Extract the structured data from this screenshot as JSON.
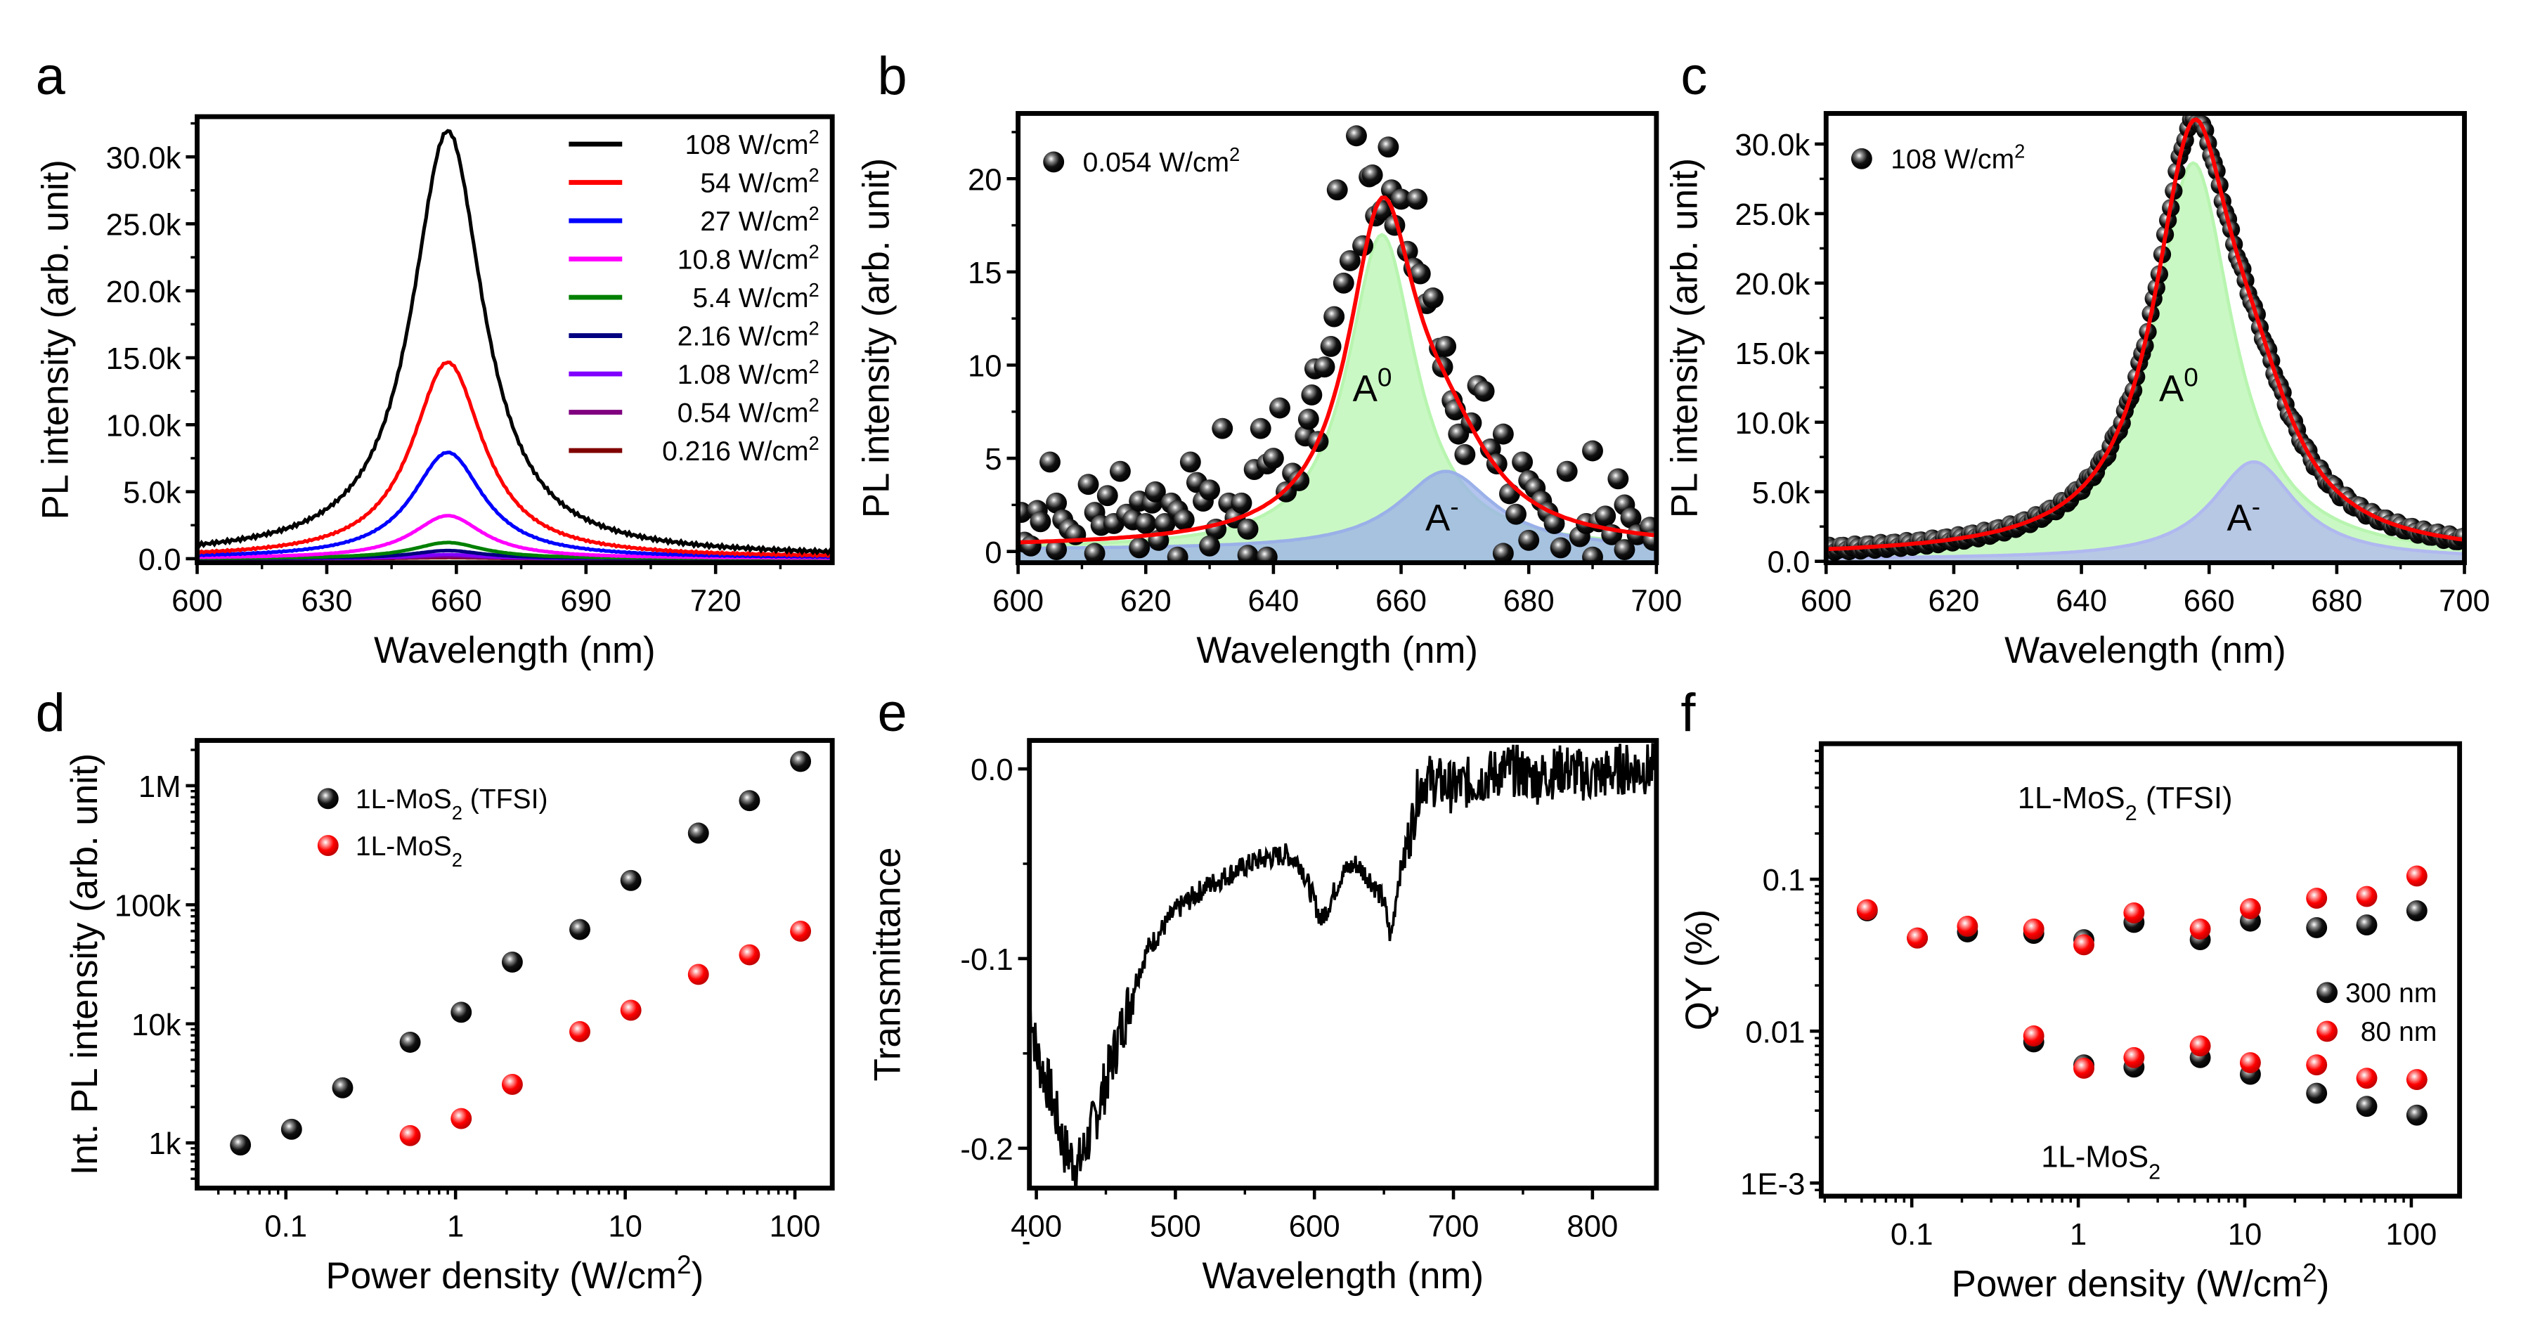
{
  "panel_labels": [
    "a",
    "b",
    "c",
    "d",
    "e",
    "f"
  ],
  "chart_data": [
    {
      "panel": "a",
      "type": "line",
      "xlabel": "Wavelength (nm)",
      "ylabel": "PL intensity (arb. unit)",
      "xlim": [
        600,
        747
      ],
      "ylim": [
        -0.3,
        33
      ],
      "xticks": [
        600,
        630,
        660,
        690,
        720
      ],
      "xtick_labels": [
        "600",
        "630",
        "660",
        "690",
        "720"
      ],
      "yticks": [
        0,
        5,
        10,
        15,
        20,
        25,
        30
      ],
      "ytick_labels": [
        "0.0",
        "5.0k",
        "10.0k",
        "15.0k",
        "20.0k",
        "25.0k",
        "30.0k"
      ],
      "y_unit": "k",
      "legend_position": "top-right",
      "series": [
        {
          "name": "108 W/cm",
          "sup": "2",
          "color": "#000000",
          "peak_nm": 658,
          "peak": 31.8,
          "fwhm_nm": 20
        },
        {
          "name": "54 W/cm",
          "sup": "2",
          "color": "#ff0000",
          "peak_nm": 658,
          "peak": 14.6,
          "fwhm_nm": 20
        },
        {
          "name": "27 W/cm",
          "sup": "2",
          "color": "#0000ff",
          "peak_nm": 658,
          "peak": 7.9,
          "fwhm_nm": 20
        },
        {
          "name": "10.8 W/cm",
          "sup": "2",
          "color": "#ff00ff",
          "peak_nm": 658,
          "peak": 3.2,
          "fwhm_nm": 20
        },
        {
          "name": "5.4 W/cm",
          "sup": "2",
          "color": "#008000",
          "peak_nm": 658,
          "peak": 1.2,
          "fwhm_nm": 20
        },
        {
          "name": "2.16 W/cm",
          "sup": "2",
          "color": "#000080",
          "peak_nm": 658,
          "peak": 0.6,
          "fwhm_nm": 20
        },
        {
          "name": "1.08 W/cm",
          "sup": "2",
          "color": "#8000ff",
          "peak_nm": 658,
          "peak": 0.3,
          "fwhm_nm": 20
        },
        {
          "name": "0.54 W/cm",
          "sup": "2",
          "color": "#800080",
          "peak_nm": 658,
          "peak": 0.15,
          "fwhm_nm": 20
        },
        {
          "name": "0.216 W/cm",
          "sup": "2",
          "color": "#800000",
          "peak_nm": 658,
          "peak": 0.08,
          "fwhm_nm": 20
        }
      ]
    },
    {
      "panel": "b",
      "type": "scatter",
      "xlabel": "Wavelength (nm)",
      "ylabel": "PL intensity (arb. unit)",
      "xlim": [
        600,
        700
      ],
      "ylim": [
        -0.6,
        23.5
      ],
      "xticks": [
        600,
        620,
        640,
        660,
        680,
        700
      ],
      "xtick_labels": [
        "600",
        "620",
        "640",
        "660",
        "680",
        "700"
      ],
      "yticks": [
        0,
        5,
        10,
        15,
        20
      ],
      "ytick_labels": [
        "0",
        "5",
        "10",
        "15",
        "20"
      ],
      "legend": {
        "text": "0.054 W/cm",
        "sup": "2"
      },
      "fit_color": "#ff0000",
      "components": [
        {
          "label": "A",
          "sup": "0",
          "center_nm": 657,
          "peak": 16.9,
          "fwhm_nm": 13,
          "fill": "#b8f5b0",
          "label_color": "#1aa050"
        },
        {
          "label": "A",
          "sup": "-",
          "center_nm": 667,
          "peak": 4.2,
          "fwhm_nm": 18,
          "fill": "#9ab0e8",
          "label_color": "#0000ff"
        }
      ],
      "baseline": 0.2,
      "points": [
        [
          600.5,
          2.1
        ],
        [
          601,
          0.5
        ],
        [
          602,
          0.3
        ],
        [
          603,
          2.2
        ],
        [
          603.5,
          1.6
        ],
        [
          605,
          4.8
        ],
        [
          606,
          2.6
        ],
        [
          607,
          1.7
        ],
        [
          608,
          1.2
        ],
        [
          609,
          0.9
        ],
        [
          611,
          3.6
        ],
        [
          612,
          2.1
        ],
        [
          613,
          1.4
        ],
        [
          614,
          3.0
        ],
        [
          615,
          1.5
        ],
        [
          616,
          4.3
        ],
        [
          617,
          2.0
        ],
        [
          618,
          1.7
        ],
        [
          619,
          2.7
        ],
        [
          620,
          1.5
        ],
        [
          621,
          2.6
        ],
        [
          621.5,
          3.2
        ],
        [
          622,
          0.6
        ],
        [
          623,
          1.5
        ],
        [
          624,
          2.6
        ],
        [
          625,
          2.2
        ],
        [
          626,
          1.7
        ],
        [
          627,
          4.8
        ],
        [
          628,
          3.7
        ],
        [
          629,
          2.7
        ],
        [
          630,
          3.3
        ],
        [
          631,
          1.2
        ],
        [
          632,
          6.6
        ],
        [
          633,
          2.6
        ],
        [
          634,
          1.8
        ],
        [
          635,
          2.6
        ],
        [
          636,
          1.2
        ],
        [
          637,
          4.4
        ],
        [
          638,
          6.6
        ],
        [
          639,
          4.7
        ],
        [
          640,
          5.0
        ],
        [
          641,
          7.7
        ],
        [
          642,
          3.2
        ],
        [
          643,
          4.2
        ],
        [
          644,
          3.8
        ],
        [
          645,
          6.2
        ],
        [
          645.5,
          7.1
        ],
        [
          646,
          8.4
        ],
        [
          646.5,
          9.8
        ],
        [
          647,
          5.9
        ],
        [
          648,
          9.9
        ],
        [
          649,
          11.0
        ],
        [
          649.5,
          12.6
        ],
        [
          650,
          19.4
        ],
        [
          651,
          14.4
        ],
        [
          652,
          15.6
        ],
        [
          653,
          22.3
        ],
        [
          654,
          16.4
        ],
        [
          655,
          20.1
        ],
        [
          655.5,
          20.2
        ],
        [
          656,
          18.0
        ],
        [
          657,
          18.3
        ],
        [
          658,
          21.7
        ],
        [
          658.5,
          19.4
        ],
        [
          659,
          17.5
        ],
        [
          660,
          18.9
        ],
        [
          661,
          16.1
        ],
        [
          662,
          15.2
        ],
        [
          662.5,
          18.9
        ],
        [
          663,
          14.9
        ],
        [
          664,
          13.3
        ],
        [
          665,
          13.6
        ],
        [
          666,
          10.9
        ],
        [
          666.5,
          9.9
        ],
        [
          667,
          11.0
        ],
        [
          668,
          8.1
        ],
        [
          668.5,
          7.6
        ],
        [
          669,
          6.3
        ],
        [
          670,
          5.2
        ],
        [
          671,
          6.9
        ],
        [
          672,
          8.9
        ],
        [
          673,
          8.6
        ],
        [
          674,
          5.5
        ],
        [
          675,
          4.7
        ],
        [
          676,
          6.3
        ],
        [
          677,
          3.1
        ],
        [
          678,
          2.0
        ],
        [
          679,
          4.8
        ],
        [
          680,
          3.8
        ],
        [
          681,
          3.4
        ],
        [
          682,
          2.7
        ],
        [
          683,
          2.1
        ],
        [
          684,
          1.5
        ],
        [
          686,
          4.3
        ],
        [
          688,
          0.8
        ],
        [
          689,
          1.5
        ],
        [
          690,
          5.4
        ],
        [
          691,
          1.6
        ],
        [
          692,
          1.9
        ],
        [
          693,
          0.9
        ],
        [
          694,
          3.9
        ],
        [
          695,
          2.5
        ],
        [
          696,
          1.8
        ],
        [
          697,
          0.9
        ],
        [
          699,
          1.3
        ],
        [
          699.5,
          0.6
        ],
        [
          606,
          0.1
        ],
        [
          612,
          -0.1
        ],
        [
          619,
          0.2
        ],
        [
          625,
          -0.3
        ],
        [
          630,
          0.3
        ],
        [
          636,
          -0.2
        ],
        [
          639,
          -0.3
        ],
        [
          676,
          -0.1
        ],
        [
          680,
          0.6
        ],
        [
          685,
          0.2
        ],
        [
          690,
          -0.3
        ],
        [
          695,
          0.1
        ]
      ]
    },
    {
      "panel": "c",
      "type": "scatter",
      "xlabel": "Wavelength (nm)",
      "ylabel": "PL intensity (arb. unit)",
      "xlim": [
        600,
        700
      ],
      "ylim": [
        -0.1,
        32.2
      ],
      "xticks": [
        600,
        620,
        640,
        660,
        680,
        700
      ],
      "xtick_labels": [
        "600",
        "620",
        "640",
        "660",
        "680",
        "700"
      ],
      "yticks": [
        0,
        5,
        10,
        15,
        20,
        25,
        30
      ],
      "ytick_labels": [
        "0.0",
        "5.0k",
        "10.0k",
        "15.0k",
        "20.0k",
        "25.0k",
        "30.0k"
      ],
      "y_unit": "k",
      "legend": {
        "text": "108 W/cm",
        "sup": "2"
      },
      "fit_color": "#ff0000",
      "components": [
        {
          "label": "A",
          "sup": "0",
          "center_nm": 657.5,
          "peak": 28.5,
          "fwhm_nm": 15,
          "fill": "#b8f5b0",
          "label_color": "#1aa050"
        },
        {
          "label": "A",
          "sup": "-",
          "center_nm": 667,
          "peak": 7.0,
          "fwhm_nm": 16,
          "fill": "#b0b8f0",
          "label_color": "#0000ff"
        }
      ],
      "baseline": 0.3,
      "points_note_hidden": true
    },
    {
      "panel": "d",
      "type": "scatter",
      "xlabel": "Power density (W/cm",
      "xlabel_sup": "2",
      "xlabel_after": ")",
      "ylabel": "Int. PL intensity (arb. unit)",
      "xscale": "log",
      "yscale": "log",
      "xlim": [
        0.03,
        166
      ],
      "ylim": [
        417,
        2400000
      ],
      "xticks": [
        0.1,
        1,
        10,
        100
      ],
      "xtick_labels": [
        "0.1",
        "1",
        "10",
        "100"
      ],
      "yticks": [
        1000,
        10000,
        100000,
        1000000
      ],
      "ytick_labels": [
        "1k",
        "10k",
        "100k",
        "1M"
      ],
      "legend_position": "top-left",
      "series": [
        {
          "name": "1L-MoS",
          "sub": "2",
          "after": " (TFSI)",
          "color": "black",
          "x": [
            0.054,
            0.108,
            0.216,
            0.54,
            1.08,
            2.16,
            5.4,
            10.8,
            27,
            54,
            108
          ],
          "y": [
            960,
            1300,
            2900,
            7000,
            12500,
            33000,
            62000,
            160000,
            400000,
            750000,
            1600000
          ]
        },
        {
          "name": "1L-MoS",
          "sub": "2",
          "after": "",
          "color": "red",
          "x": [
            0.54,
            1.08,
            2.16,
            5.4,
            10.8,
            27,
            54,
            108
          ],
          "y": [
            1150,
            1600,
            3100,
            8600,
            13000,
            26000,
            38000,
            60000
          ]
        }
      ]
    },
    {
      "panel": "e",
      "type": "line",
      "xlabel": "Wavelength (nm)",
      "ylabel": "Transmittance",
      "xlim": [
        395,
        846
      ],
      "ylim": [
        -0.221,
        0.015
      ],
      "xticks": [
        400,
        500,
        600,
        700,
        800
      ],
      "xtick_labels": [
        "400",
        "500",
        "600",
        "700",
        "800"
      ],
      "yticks": [
        0,
        -0.1,
        -0.2
      ],
      "ytick_labels": [
        "0.0",
        "-0.1",
        "-0.2"
      ],
      "x": [
        395,
        400,
        410,
        420,
        430,
        440,
        450,
        460,
        470,
        480,
        490,
        500,
        520,
        540,
        560,
        580,
        590,
        600,
        605,
        610,
        620,
        630,
        640,
        650,
        655,
        660,
        665,
        670,
        675,
        680,
        700,
        720,
        740,
        760,
        780,
        800,
        820,
        846
      ],
      "y": [
        -0.12,
        -0.15,
        -0.17,
        -0.2,
        -0.21,
        -0.19,
        -0.165,
        -0.14,
        -0.115,
        -0.095,
        -0.085,
        -0.075,
        -0.063,
        -0.055,
        -0.048,
        -0.045,
        -0.05,
        -0.07,
        -0.08,
        -0.072,
        -0.055,
        -0.05,
        -0.058,
        -0.07,
        -0.09,
        -0.06,
        -0.045,
        -0.03,
        -0.01,
        -0.005,
        -0.01,
        -0.005,
        0,
        -0.005,
        0,
        -0.005,
        0,
        0
      ]
    },
    {
      "panel": "f",
      "type": "scatter",
      "xlabel": "Power density (W/cm",
      "xlabel_sup": "2",
      "xlabel_after": ")",
      "ylabel": "QY (%)",
      "xscale": "log",
      "yscale": "log",
      "xlim": [
        0.0286,
        195
      ],
      "ylim": [
        0.00082,
        0.78
      ],
      "xticks": [
        0.1,
        1,
        10,
        100
      ],
      "xtick_labels": [
        "0.1",
        "1",
        "10",
        "100"
      ],
      "yticks": [
        0.001,
        0.01,
        0.1
      ],
      "ytick_labels": [
        "1E-3",
        "0.01",
        "0.1"
      ],
      "annotations": [
        {
          "text": "1L-MoS",
          "sub": "2",
          "after": " (TFSI)"
        },
        {
          "text": "1L-MoS",
          "sub": "2",
          "after": ""
        }
      ],
      "legend_position": "right",
      "series": [
        {
          "name": "300 nm",
          "color": "black",
          "x": [
            0.054,
            0.108,
            0.216,
            0.54,
            1.08,
            2.16,
            5.4,
            10.8,
            27,
            54,
            108,
            0.54,
            1.08,
            2.16,
            5.4,
            10.8,
            27,
            54,
            108
          ],
          "y": [
            0.062,
            0.041,
            0.045,
            0.044,
            0.04,
            0.052,
            0.04,
            0.053,
            0.048,
            0.05,
            0.062,
            0.0085,
            0.006,
            0.0058,
            0.0067,
            0.0052,
            0.0039,
            0.0032,
            0.0028
          ]
        },
        {
          "name": "80 nm",
          "color": "red",
          "x": [
            0.054,
            0.108,
            0.216,
            0.54,
            1.08,
            2.16,
            5.4,
            10.8,
            27,
            54,
            108,
            0.54,
            1.08,
            2.16,
            5.4,
            10.8,
            27,
            54,
            108
          ],
          "y": [
            0.063,
            0.041,
            0.049,
            0.047,
            0.037,
            0.06,
            0.047,
            0.064,
            0.075,
            0.077,
            0.105,
            0.0093,
            0.0057,
            0.0067,
            0.008,
            0.0062,
            0.006,
            0.0049,
            0.0048
          ]
        }
      ]
    }
  ]
}
